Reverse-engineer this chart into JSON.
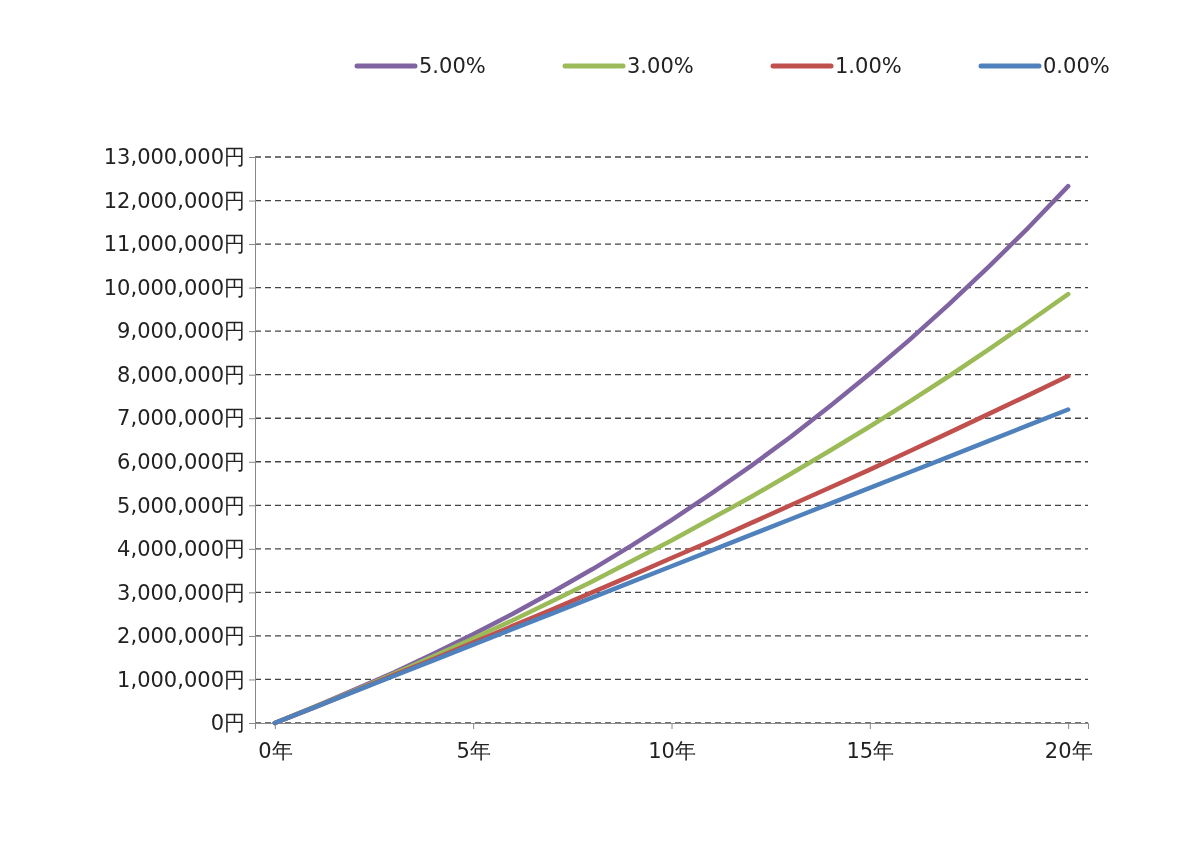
{
  "chart_data": {
    "type": "line",
    "x": [
      0,
      1,
      2,
      3,
      4,
      5,
      6,
      7,
      8,
      9,
      10,
      11,
      12,
      13,
      14,
      15,
      16,
      17,
      18,
      19,
      20
    ],
    "series": [
      {
        "name": "5.00%",
        "color": "#8064a2",
        "values": [
          0,
          370000,
          760000,
          1160000,
          1590000,
          2040000,
          2510000,
          3010000,
          3530000,
          4080000,
          4660000,
          5270000,
          5900000,
          6570000,
          7280000,
          8020000,
          8800000,
          9620000,
          10480000,
          11380000,
          12330000
        ]
      },
      {
        "name": "3.00%",
        "color": "#9bbb59",
        "values": [
          0,
          370000,
          740000,
          1130000,
          1530000,
          1940000,
          2360000,
          2800000,
          3250000,
          3720000,
          4190000,
          4690000,
          5190000,
          5720000,
          6260000,
          6810000,
          7380000,
          7970000,
          8580000,
          9210000,
          9850000
        ]
      },
      {
        "name": "1.00%",
        "color": "#c0504d",
        "values": [
          0,
          360000,
          730000,
          1100000,
          1470000,
          1850000,
          2230000,
          2610000,
          3000000,
          3390000,
          3790000,
          4180000,
          4590000,
          5000000,
          5410000,
          5820000,
          6240000,
          6670000,
          7100000,
          7530000,
          7970000
        ]
      },
      {
        "name": "0.00%",
        "color": "#4f81bd",
        "values": [
          0,
          360000,
          720000,
          1080000,
          1440000,
          1800000,
          2160000,
          2520000,
          2880000,
          3240000,
          3600000,
          3960000,
          4320000,
          4680000,
          5040000,
          5400000,
          5760000,
          6120000,
          6480000,
          6840000,
          7200000
        ]
      }
    ],
    "xlim": [
      -0.5,
      20.5
    ],
    "xticks": [
      {
        "value": 0,
        "label": "0年"
      },
      {
        "value": 5,
        "label": "5年"
      },
      {
        "value": 10,
        "label": "10年"
      },
      {
        "value": 15,
        "label": "15年"
      },
      {
        "value": 20,
        "label": "20年"
      }
    ],
    "ylim": [
      0,
      13000000
    ],
    "yticks": [
      {
        "value": 0,
        "label": "0円"
      },
      {
        "value": 1000000,
        "label": "1,000,000円"
      },
      {
        "value": 2000000,
        "label": "2,000,000円"
      },
      {
        "value": 3000000,
        "label": "3,000,000円"
      },
      {
        "value": 4000000,
        "label": "4,000,000円"
      },
      {
        "value": 5000000,
        "label": "5,000,000円"
      },
      {
        "value": 6000000,
        "label": "6,000,000円"
      },
      {
        "value": 7000000,
        "label": "7,000,000円"
      },
      {
        "value": 8000000,
        "label": "8,000,000円"
      },
      {
        "value": 9000000,
        "label": "9,000,000円"
      },
      {
        "value": 10000000,
        "label": "10,000,000円"
      },
      {
        "value": 11000000,
        "label": "11,000,000円"
      },
      {
        "value": 12000000,
        "label": "12,000,000円"
      },
      {
        "value": 13000000,
        "label": "13,000,000円"
      }
    ],
    "grid": "y",
    "legend": "top right",
    "marker": "none",
    "line_style": "solid"
  }
}
